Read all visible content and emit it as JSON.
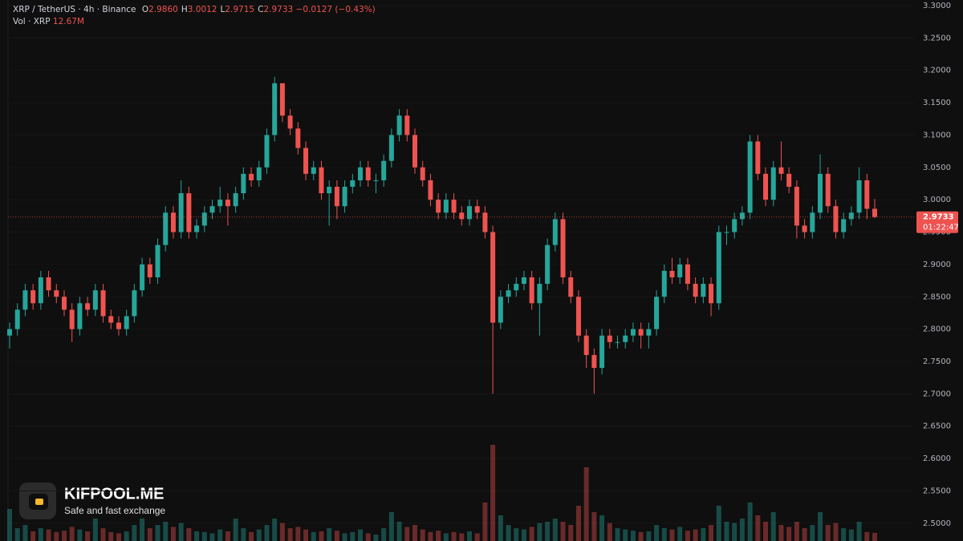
{
  "chart_data": {
    "type": "candlestick",
    "title": "XRP / TetherUS · 4h · Binance",
    "ohlc_legend": [
      {
        "key": "O",
        "text": "2.9860"
      },
      {
        "key": "H",
        "text": "3.0012"
      },
      {
        "key": "L",
        "text": "2.9715"
      },
      {
        "key": "C",
        "text": "2.9733"
      }
    ],
    "change": "−0.0127 (−0.43%)",
    "up_color": "#26a69a",
    "down_color": "#ef5350",
    "ylim": [
      2.4725,
      3.3
    ],
    "yticks": [
      {
        "value": 2.5,
        "label": "2.5000"
      },
      {
        "value": 2.55,
        "label": "2.5500"
      },
      {
        "value": 2.6,
        "label": "2.6000"
      },
      {
        "value": 2.65,
        "label": "2.6500"
      },
      {
        "value": 2.7,
        "label": "2.7000"
      },
      {
        "value": 2.75,
        "label": "2.7500"
      },
      {
        "value": 2.8,
        "label": "2.8000"
      },
      {
        "value": 2.85,
        "label": "2.8500"
      },
      {
        "value": 2.9,
        "label": "2.9000"
      },
      {
        "value": 2.95,
        "label": "2.9500"
      },
      {
        "value": 3.0,
        "label": "3.0000"
      },
      {
        "value": 3.05,
        "label": "3.0500"
      },
      {
        "value": 3.1,
        "label": "3.1000"
      },
      {
        "value": 3.15,
        "label": "3.1500"
      },
      {
        "value": 3.2,
        "label": "3.2000"
      },
      {
        "value": 3.25,
        "label": "3.2500"
      },
      {
        "value": 3.3,
        "label": "3.3000"
      }
    ],
    "open": [
      2.79,
      2.8,
      2.83,
      2.86,
      2.84,
      2.88,
      2.86,
      2.85,
      2.83,
      2.8,
      2.84,
      2.83,
      2.86,
      2.82,
      2.81,
      2.8,
      2.82,
      2.86,
      2.9,
      2.88,
      2.93,
      2.98,
      2.95,
      3.01,
      2.95,
      2.96,
      2.98,
      2.99,
      3.0,
      2.99,
      3.01,
      3.04,
      3.03,
      3.05,
      3.1,
      3.18,
      3.13,
      3.11,
      3.08,
      3.04,
      3.05,
      3.01,
      3.02,
      2.99,
      3.02,
      3.03,
      3.05,
      3.03,
      3.03,
      3.06,
      3.1,
      3.13,
      3.1,
      3.05,
      3.03,
      3.0,
      2.98,
      3.0,
      2.98,
      2.97,
      2.99,
      2.98,
      2.95,
      2.81,
      2.85,
      2.86,
      2.87,
      2.88,
      2.84,
      2.87,
      2.93,
      2.97,
      2.88,
      2.85,
      2.79,
      2.76,
      2.74,
      2.79,
      2.78,
      2.78,
      2.79,
      2.8,
      2.79,
      2.8,
      2.85,
      2.89,
      2.88,
      2.9,
      2.87,
      2.85,
      2.87,
      2.84,
      2.95,
      2.95,
      2.97,
      2.98,
      3.09,
      3.04,
      3.0,
      3.05,
      3.04,
      3.02,
      2.96,
      2.95,
      2.98,
      3.04,
      2.99,
      2.95,
      2.97,
      2.98,
      3.03,
      2.986
    ],
    "high": [
      2.81,
      2.84,
      2.87,
      2.87,
      2.89,
      2.89,
      2.87,
      2.86,
      2.84,
      2.85,
      2.85,
      2.87,
      2.87,
      2.83,
      2.82,
      2.83,
      2.87,
      2.91,
      2.91,
      2.94,
      2.99,
      2.99,
      3.03,
      3.02,
      2.97,
      2.99,
      3.0,
      3.02,
      3.01,
      3.02,
      3.05,
      3.05,
      3.06,
      3.11,
      3.19,
      3.18,
      3.14,
      3.12,
      3.09,
      3.06,
      3.06,
      3.03,
      3.03,
      3.03,
      3.04,
      3.06,
      3.06,
      3.04,
      3.07,
      3.11,
      3.14,
      3.14,
      3.11,
      3.06,
      3.04,
      3.01,
      3.01,
      3.01,
      2.99,
      3.0,
      3.0,
      2.99,
      2.96,
      2.86,
      2.87,
      2.88,
      2.89,
      2.89,
      2.88,
      2.94,
      2.98,
      2.98,
      2.89,
      2.86,
      2.8,
      2.77,
      2.8,
      2.8,
      2.79,
      2.8,
      2.81,
      2.81,
      2.81,
      2.86,
      2.9,
      2.91,
      2.91,
      2.91,
      2.88,
      2.88,
      2.88,
      2.96,
      2.96,
      2.98,
      2.99,
      3.1,
      3.1,
      3.05,
      3.06,
      3.09,
      3.05,
      3.03,
      2.97,
      2.99,
      3.07,
      3.05,
      3.0,
      2.98,
      2.99,
      3.05,
      3.04,
      3.0012
    ],
    "low": [
      2.77,
      2.79,
      2.82,
      2.83,
      2.83,
      2.85,
      2.84,
      2.82,
      2.78,
      2.79,
      2.82,
      2.82,
      2.81,
      2.8,
      2.79,
      2.79,
      2.81,
      2.85,
      2.87,
      2.87,
      2.92,
      2.94,
      2.94,
      2.94,
      2.94,
      2.95,
      2.97,
      2.98,
      2.96,
      2.98,
      3.0,
      3.02,
      3.02,
      3.04,
      3.09,
      3.12,
      3.1,
      3.07,
      3.03,
      3.03,
      3.0,
      2.96,
      2.97,
      2.98,
      3.01,
      3.02,
      3.02,
      3.01,
      3.02,
      3.05,
      3.09,
      3.09,
      3.04,
      3.02,
      2.99,
      2.97,
      2.97,
      2.97,
      2.96,
      2.96,
      2.97,
      2.94,
      2.7,
      2.8,
      2.84,
      2.85,
      2.86,
      2.83,
      2.79,
      2.86,
      2.92,
      2.87,
      2.84,
      2.78,
      2.74,
      2.7,
      2.73,
      2.77,
      2.77,
      2.77,
      2.78,
      2.77,
      2.77,
      2.79,
      2.84,
      2.87,
      2.87,
      2.86,
      2.84,
      2.84,
      2.82,
      2.83,
      2.93,
      2.94,
      2.96,
      2.97,
      3.03,
      2.99,
      2.99,
      3.03,
      3.01,
      2.94,
      2.94,
      2.94,
      2.97,
      2.98,
      2.94,
      2.94,
      2.96,
      2.97,
      2.97,
      2.9715
    ],
    "close": [
      2.8,
      2.83,
      2.86,
      2.84,
      2.88,
      2.86,
      2.85,
      2.83,
      2.8,
      2.84,
      2.83,
      2.86,
      2.82,
      2.81,
      2.8,
      2.82,
      2.86,
      2.9,
      2.88,
      2.93,
      2.98,
      2.95,
      3.01,
      2.95,
      2.96,
      2.98,
      2.99,
      3.0,
      2.99,
      3.01,
      3.04,
      3.03,
      3.05,
      3.1,
      3.18,
      3.13,
      3.11,
      3.08,
      3.04,
      3.05,
      3.01,
      3.02,
      2.99,
      3.02,
      3.03,
      3.05,
      3.03,
      3.03,
      3.06,
      3.1,
      3.13,
      3.1,
      3.05,
      3.03,
      3.0,
      2.98,
      3.0,
      2.98,
      2.97,
      2.99,
      2.98,
      2.95,
      2.81,
      2.85,
      2.86,
      2.87,
      2.88,
      2.84,
      2.87,
      2.93,
      2.97,
      2.88,
      2.85,
      2.79,
      2.76,
      2.74,
      2.79,
      2.78,
      2.78,
      2.79,
      2.8,
      2.79,
      2.8,
      2.85,
      2.89,
      2.88,
      2.9,
      2.87,
      2.85,
      2.87,
      2.84,
      2.95,
      2.95,
      2.97,
      2.98,
      3.09,
      3.04,
      3.0,
      3.05,
      3.04,
      3.02,
      2.96,
      2.95,
      2.98,
      3.04,
      2.99,
      2.95,
      2.97,
      2.98,
      3.03,
      2.986,
      2.9733
    ],
    "volume": {
      "name": "Vol · XRP",
      "last_label": "12.67M",
      "values": [
        50,
        20,
        25,
        15,
        20,
        18,
        14,
        16,
        22,
        18,
        15,
        35,
        20,
        14,
        12,
        15,
        25,
        35,
        20,
        25,
        30,
        22,
        28,
        20,
        15,
        14,
        12,
        18,
        15,
        35,
        20,
        14,
        18,
        25,
        35,
        28,
        20,
        22,
        18,
        14,
        15,
        20,
        16,
        12,
        14,
        18,
        12,
        10,
        20,
        45,
        30,
        22,
        25,
        18,
        14,
        16,
        12,
        14,
        12,
        15,
        12,
        60,
        150,
        40,
        25,
        20,
        18,
        22,
        28,
        30,
        35,
        30,
        25,
        55,
        115,
        45,
        40,
        28,
        20,
        18,
        16,
        14,
        15,
        25,
        20,
        18,
        22,
        16,
        18,
        20,
        25,
        55,
        30,
        28,
        35,
        60,
        40,
        30,
        45,
        25,
        22,
        30,
        20,
        25,
        45,
        25,
        28,
        20,
        18,
        30,
        14,
        12.67
      ]
    },
    "current_price_label": "2.9733",
    "countdown": "01:22:47",
    "watermark": {
      "brand": "KIFPOOL.ME",
      "tagline": "Safe and fast exchange"
    }
  }
}
